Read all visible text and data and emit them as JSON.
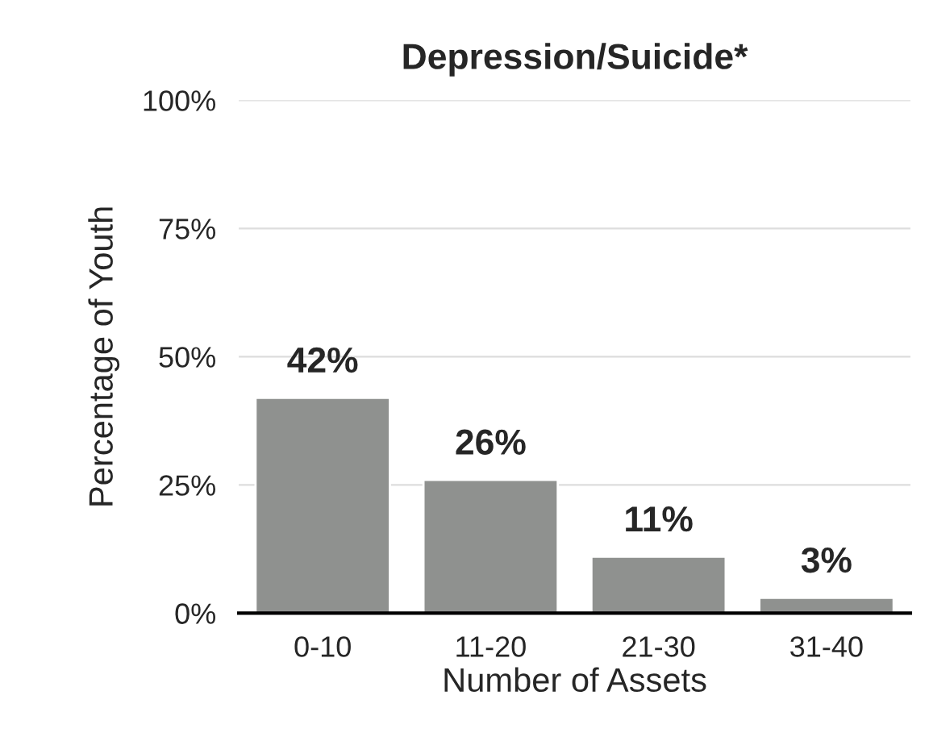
{
  "chart_data": {
    "type": "bar",
    "title": "Depression/Suicide*",
    "xlabel": "Number of Assets",
    "ylabel": "Percentage of Youth",
    "categories": [
      "0-10",
      "11-20",
      "21-30",
      "31-40"
    ],
    "values": [
      42,
      26,
      11,
      3
    ],
    "value_labels": [
      "42%",
      "26%",
      "11%",
      "3%"
    ],
    "color": "#8f918f",
    "ylim": [
      0,
      100
    ],
    "yticks": [
      {
        "value": 0,
        "label": "0%"
      },
      {
        "value": 25,
        "label": "25%"
      },
      {
        "value": 50,
        "label": "50%"
      },
      {
        "value": 75,
        "label": "75%"
      },
      {
        "value": 100,
        "label": "100%"
      }
    ],
    "grid": "y"
  }
}
